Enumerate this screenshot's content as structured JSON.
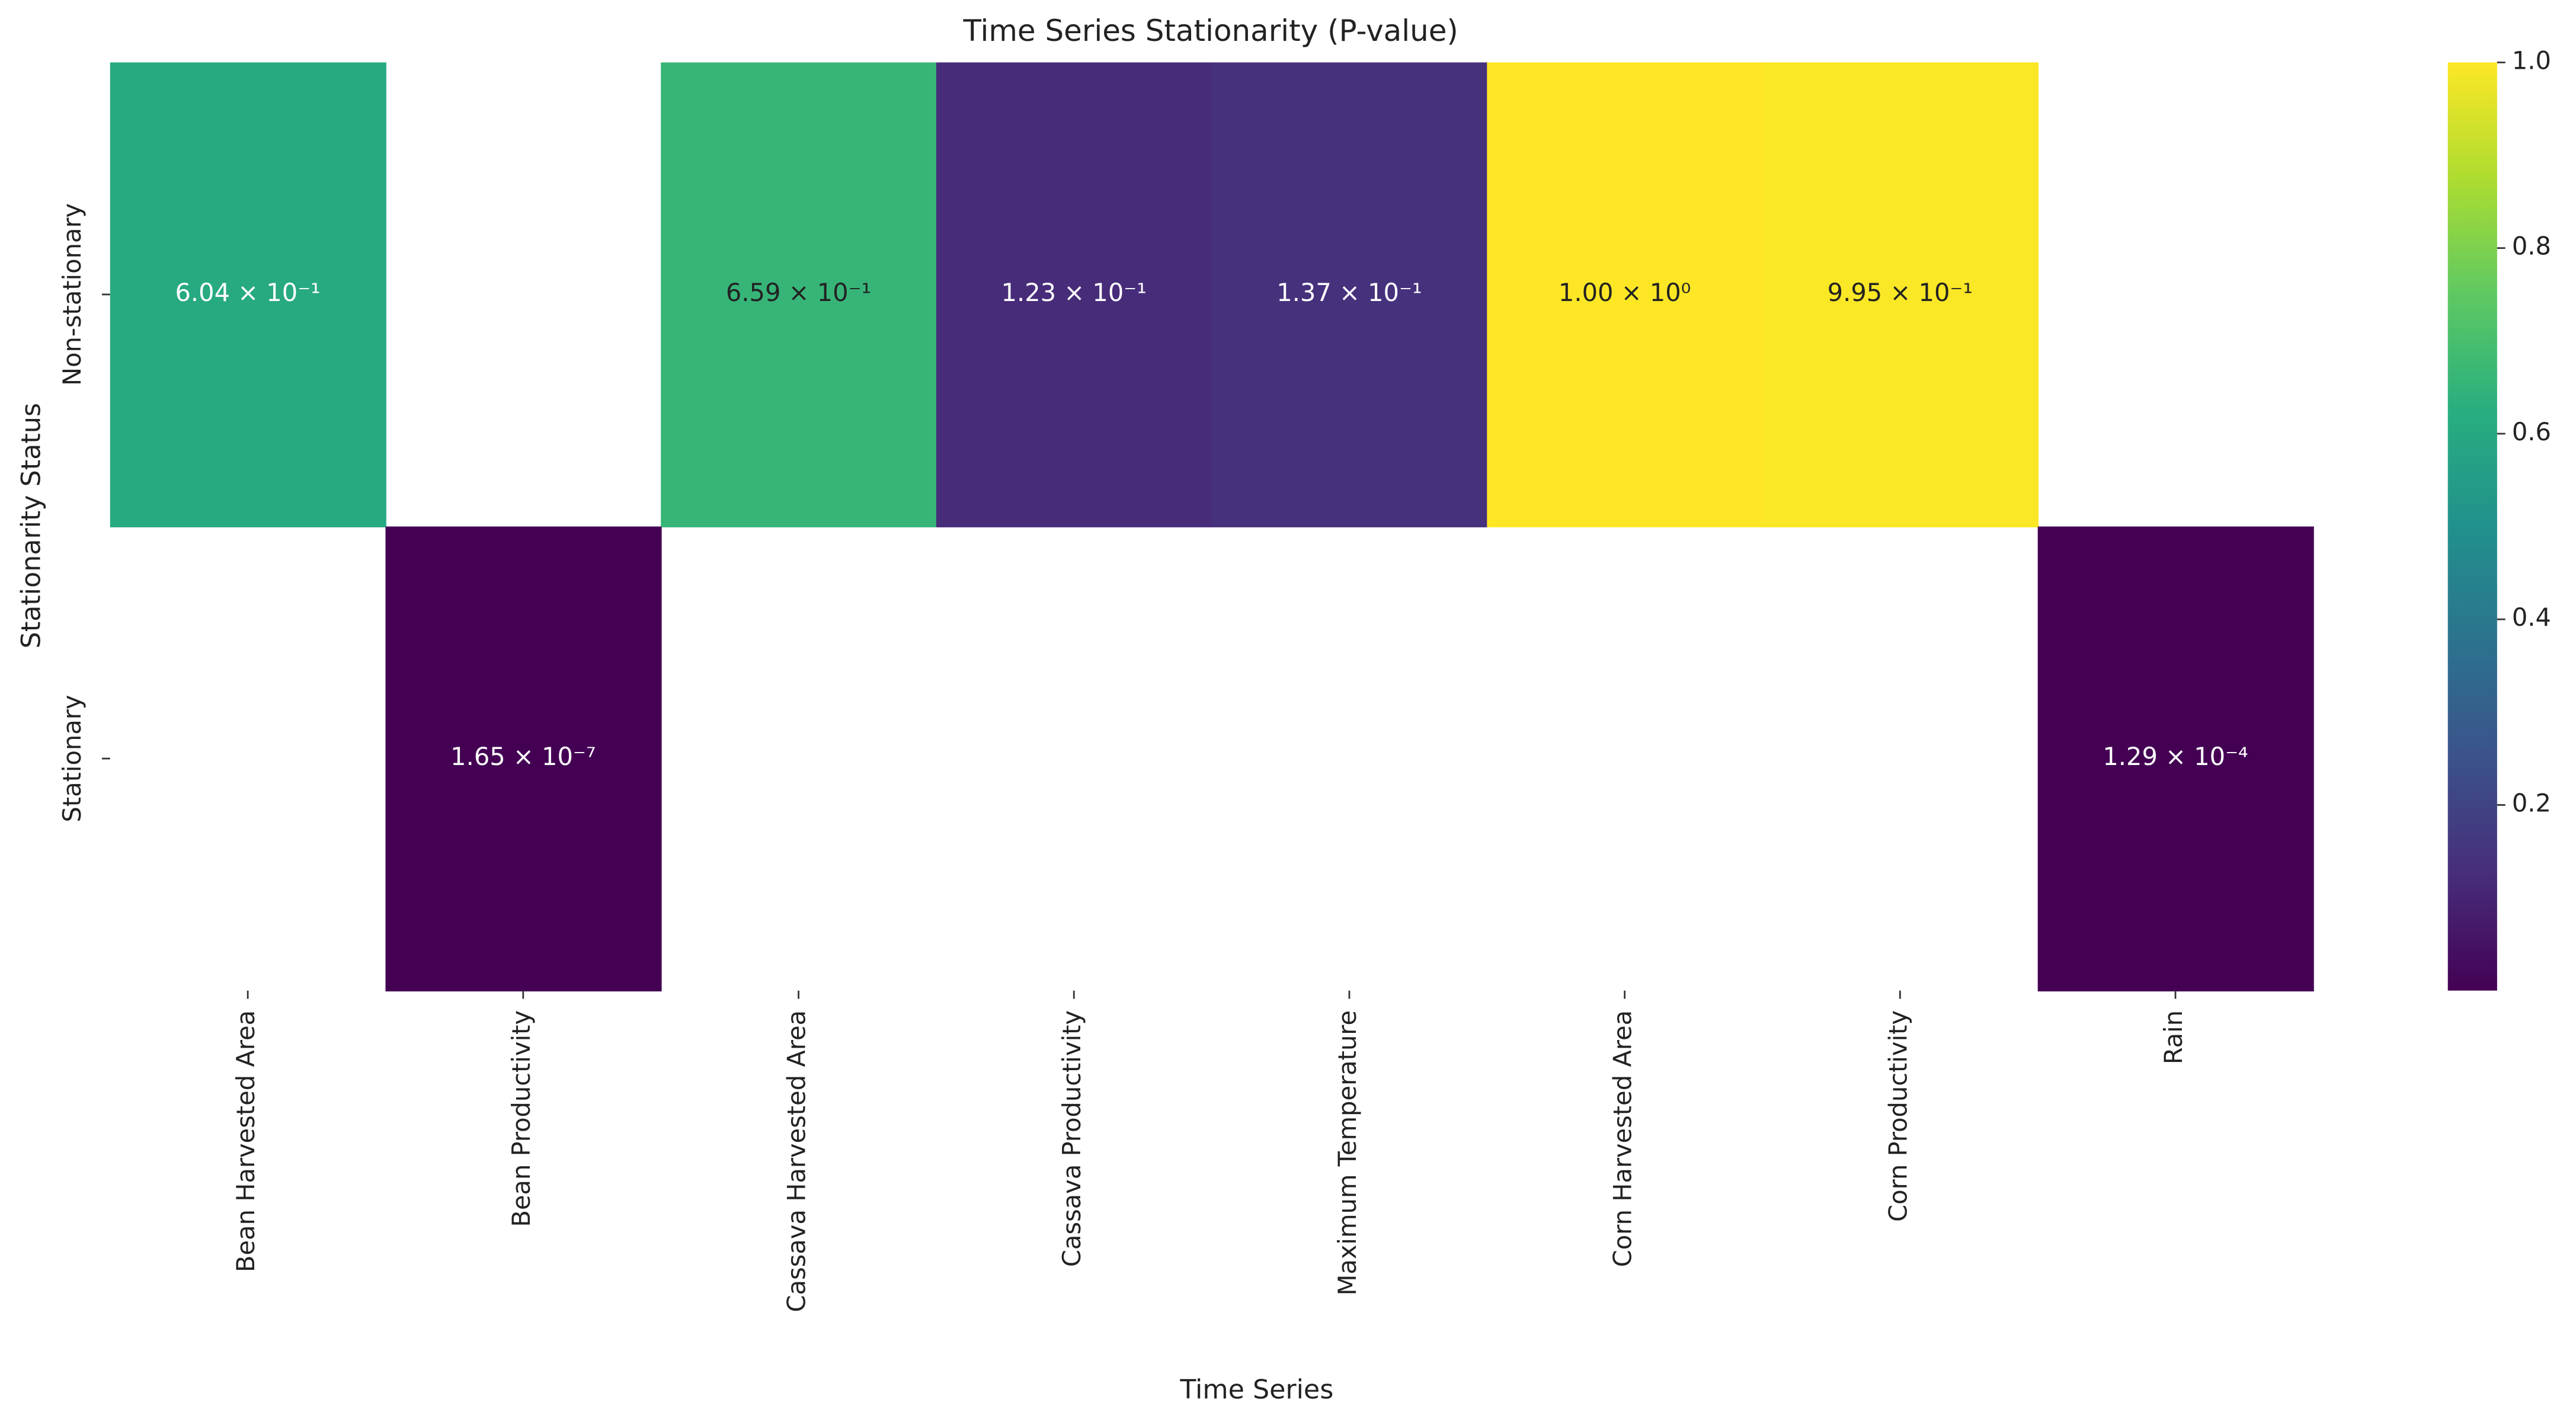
{
  "chart_data": {
    "type": "heatmap",
    "title": "Time Series Stationarity (P-value)",
    "x_label": "Time Series",
    "y_label": "Stationarity Status",
    "categories": [
      "Bean Harvested Area",
      "Bean Productivity",
      "Cassava Harvested Area",
      "Cassava Productivity",
      "Maximum Temperature",
      "Corn Harvested Area",
      "Corn Productivity",
      "Rain"
    ],
    "rows": [
      "Non-stationary",
      "Stationary"
    ],
    "values": [
      [
        0.604,
        null,
        0.659,
        0.123,
        0.137,
        1.0,
        0.995,
        null
      ],
      [
        null,
        1.65e-07,
        null,
        null,
        null,
        null,
        null,
        0.000129
      ]
    ],
    "value_labels": [
      [
        "6.04 × 10⁻¹",
        null,
        "6.59 × 10⁻¹",
        "1.23 × 10⁻¹",
        "1.37 × 10⁻¹",
        "1.00 × 10⁰",
        "9.95 × 10⁻¹",
        null
      ],
      [
        null,
        "1.65 × 10⁻⁷",
        null,
        null,
        null,
        null,
        null,
        "1.29 × 10⁻⁴"
      ]
    ],
    "colormap": "viridis",
    "colorbar_lim": [
      0,
      1
    ],
    "colorbar_ticks": [
      0.2,
      0.4,
      0.6,
      0.8,
      {
        "value": 1,
        "label": "1.0"
      }
    ]
  }
}
